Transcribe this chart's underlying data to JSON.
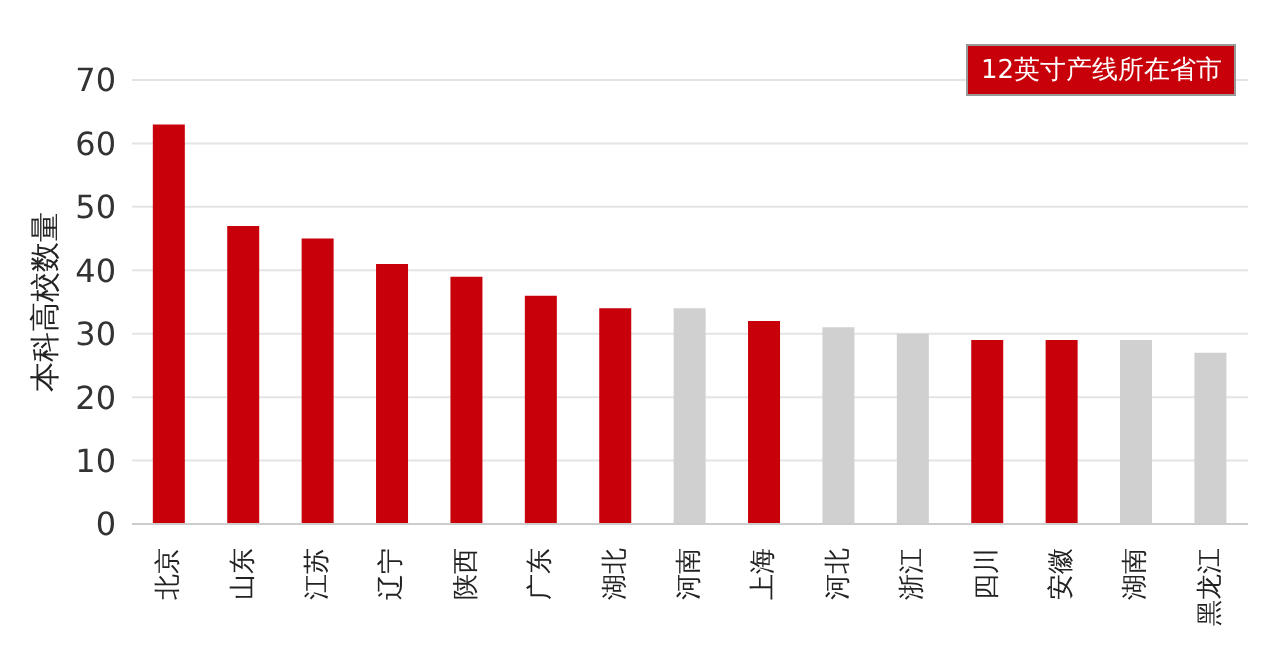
{
  "chart_data": {
    "type": "bar",
    "ylabel": "本科高校数量",
    "categories": [
      "北京",
      "山东",
      "江苏",
      "辽宁",
      "陕西",
      "广东",
      "湖北",
      "河南",
      "上海",
      "河北",
      "浙江",
      "四川",
      "安徽",
      "湖南",
      "黑龙江"
    ],
    "stacked": true,
    "series": [
      {
        "name": "12英寸产线所在省市",
        "color": "#c8000a",
        "values": [
          63,
          47,
          45,
          41,
          39,
          36,
          34,
          null,
          32,
          null,
          null,
          29,
          29,
          null,
          null
        ]
      },
      {
        "color": "#d0d0d0",
        "values": [
          null,
          null,
          null,
          null,
          null,
          null,
          null,
          34,
          null,
          31,
          30,
          null,
          null,
          29,
          27
        ]
      }
    ],
    "ylim": [
      0,
      70
    ],
    "yticks": [
      0,
      10,
      20,
      30,
      40,
      50,
      60,
      70
    ],
    "grid": "y",
    "legend": "top right"
  }
}
